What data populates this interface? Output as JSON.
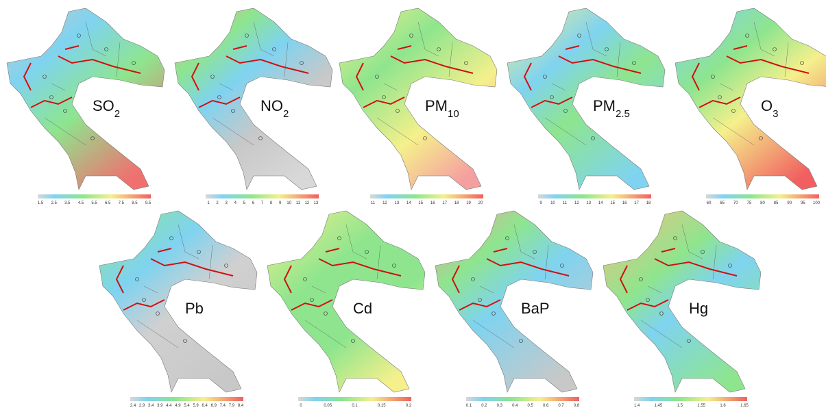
{
  "panels": [
    {
      "title": {
        "base": "SO",
        "sub": "2"
      },
      "ticks": [
        1.5,
        2.5,
        3.5,
        4.5,
        5.5,
        6.5,
        7.5,
        8.5,
        9.5
      ]
    },
    {
      "title": {
        "base": "NO",
        "sub": "2"
      },
      "ticks": [
        1,
        2,
        3,
        4,
        5,
        6,
        7,
        8,
        9,
        10,
        11,
        12,
        13
      ]
    },
    {
      "title": {
        "base": "PM",
        "sub": "10"
      },
      "ticks": [
        11,
        12,
        13,
        14,
        15,
        16,
        17,
        18,
        19,
        20
      ]
    },
    {
      "title": {
        "base": "PM",
        "sub": "2.5"
      },
      "ticks": [
        9,
        10,
        11,
        12,
        13,
        14,
        15,
        16,
        17,
        18
      ]
    },
    {
      "title": {
        "base": "O",
        "sub": "3"
      },
      "ticks": [
        60,
        65,
        70,
        75,
        80,
        85,
        90,
        95,
        100
      ]
    },
    {
      "title": {
        "base": "Pb"
      },
      "ticks": [
        2.4,
        2.9,
        3.4,
        3.9,
        4.4,
        4.9,
        5.4,
        5.9,
        6.4,
        6.9,
        7.4,
        7.9,
        8.4
      ]
    },
    {
      "title": {
        "base": "Cd"
      },
      "ticks": [
        0,
        0.05,
        0.1,
        0.15,
        0.2
      ]
    },
    {
      "title": {
        "base": "BaP"
      },
      "ticks": [
        0.1,
        0.2,
        0.3,
        0.4,
        0.5,
        0.6,
        0.7,
        0.8
      ]
    },
    {
      "title": {
        "base": "Hg"
      },
      "ticks": [
        1.4,
        1.45,
        1.5,
        1.55,
        1.6,
        1.65
      ]
    }
  ]
}
